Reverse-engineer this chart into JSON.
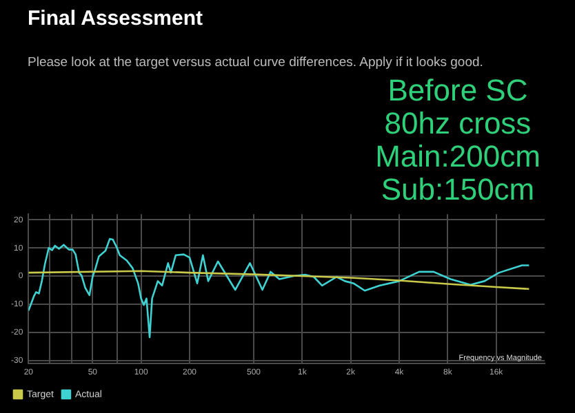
{
  "chart_data": {
    "type": "line",
    "title": "Final Assessment",
    "subtitle": "Please look at the target versus actual curve differences. Apply if it looks good.",
    "annotations": [
      "Before SC\n80hz cross\nMain:200cm\nSub:150cm",
      "Frequency vs Magnitude"
    ],
    "xlim": [
      20,
      32000
    ],
    "xticks": [
      20,
      {
        "value": 27,
        "label": null
      },
      {
        "value": 37,
        "label": null
      },
      50,
      {
        "value": 71,
        "label": null
      },
      100,
      200,
      500,
      {
        "value": 1000,
        "label": "1k"
      },
      {
        "value": 2000,
        "label": "2k"
      },
      {
        "value": 4000,
        "label": "4k"
      },
      {
        "value": 8000,
        "label": "8k"
      },
      {
        "value": 16000,
        "label": "16k"
      }
    ],
    "ylim": [
      -31,
      22
    ],
    "yticks": [
      -30,
      -20,
      -10,
      0,
      10,
      20
    ],
    "log": "x",
    "grid": true,
    "legend": "bottom left",
    "marker": "none",
    "line_style": "solid",
    "series": [
      {
        "name": "Target",
        "color": "#c9c94a",
        "x": [
          20,
          100,
          200,
          500,
          1000,
          2000,
          4000,
          8000,
          16000,
          25600
        ],
        "values": [
          1.2,
          1.8,
          1.2,
          0.6,
          0,
          -0.6,
          -1.6,
          -2.8,
          -3.9,
          -4.6
        ]
      },
      {
        "name": "Actual",
        "color": "#3fd2d2",
        "x": [
          20,
          21.6,
          22.3,
          23.2,
          24.2,
          25.3,
          26.7,
          28,
          29.2,
          30.9,
          33.1,
          35.6,
          37.6,
          39.2,
          41.2,
          42.7,
          45,
          47.8,
          50,
          52.1,
          54.7,
          60.1,
          63.9,
          66.7,
          70.7,
          73.7,
          81.5,
          88.6,
          95.8,
          100,
          104,
          108,
          113,
          117,
          127,
          135,
          147,
          153,
          164,
          184,
          200,
          223,
          242,
          261,
          300,
          384,
          474,
          566,
          637,
          722,
          883,
          1043,
          1181,
          1329,
          1636,
          1840,
          2085,
          2446,
          3011,
          4000,
          5315,
          6543,
          8340,
          11080,
          13540,
          16680,
          23100,
          25600
        ],
        "values": [
          -12.3,
          -7.2,
          -5.7,
          -6.2,
          -1.8,
          4.3,
          10,
          9.2,
          10.8,
          9.7,
          11.1,
          9.4,
          9.4,
          7.7,
          1.2,
          0.2,
          -4.2,
          -6.8,
          -0.3,
          2.8,
          7,
          9,
          13.2,
          13,
          10.1,
          7.4,
          5.5,
          2.8,
          -2.6,
          -8,
          -10.3,
          -8,
          -21.8,
          -8,
          -1.8,
          -3.4,
          4.6,
          1.2,
          7.4,
          7.7,
          6.6,
          -2.6,
          7.4,
          -1.8,
          5.2,
          -4.9,
          4.6,
          -4.9,
          1.5,
          -1.1,
          0,
          0.5,
          -0.3,
          -3.4,
          -0.3,
          -1.8,
          -2.6,
          -5.2,
          -3.4,
          -1.8,
          1.5,
          1.5,
          -1.1,
          -3.1,
          -1.8,
          1.2,
          3.8,
          3.8
        ]
      }
    ]
  }
}
